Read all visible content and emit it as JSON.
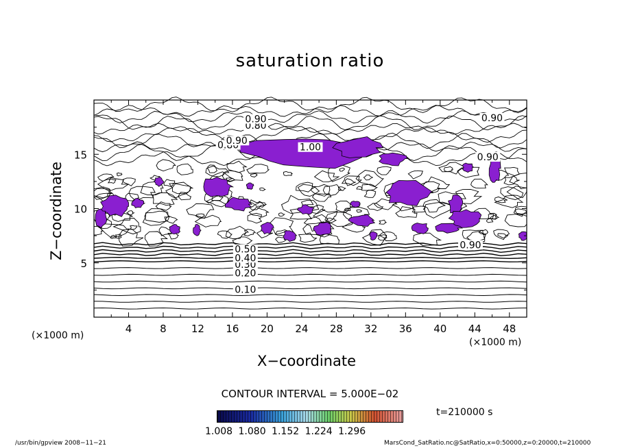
{
  "chart_data": {
    "type": "contour",
    "title": "saturation ratio",
    "xlabel": "X−coordinate",
    "ylabel": "Z−coordinate",
    "x_unit_left": "(×1000 m)",
    "x_unit_right": "(×1000 m)",
    "x_ticks": [
      "4",
      "8",
      "12",
      "16",
      "20",
      "24",
      "28",
      "32",
      "36",
      "40",
      "44",
      "48"
    ],
    "y_ticks": [
      "5",
      "10",
      "15"
    ],
    "xlim": [
      0,
      50
    ],
    "ylim": [
      0,
      20
    ],
    "contour_interval": "CONTOUR INTERVAL = 5.000E−02",
    "contour_labels": [
      {
        "text": "0.10",
        "x": 17.5,
        "z": 2.5
      },
      {
        "text": "0.20",
        "x": 17.5,
        "z": 4.0
      },
      {
        "text": "0.30",
        "x": 17.5,
        "z": 4.8
      },
      {
        "text": "0.40",
        "x": 17.5,
        "z": 5.4
      },
      {
        "text": "0.50",
        "x": 17.5,
        "z": 6.2
      },
      {
        "text": "0.80",
        "x": 18.7,
        "z": 17.6
      },
      {
        "text": "0.90",
        "x": 18.7,
        "z": 18.2
      },
      {
        "text": "0.80",
        "x": 15.5,
        "z": 15.8
      },
      {
        "text": "0.90",
        "x": 16.5,
        "z": 16.2
      },
      {
        "text": "1.00",
        "x": 25.0,
        "z": 15.6
      },
      {
        "text": "0.90",
        "x": 46.0,
        "z": 18.3
      },
      {
        "text": "0.90",
        "x": 45.5,
        "z": 14.7
      },
      {
        "text": "0.90",
        "x": 43.5,
        "z": 6.6
      }
    ],
    "shaded_threshold": 1.008,
    "shade_color": "#8a1fd0",
    "colorbar_ticks": [
      "1.008",
      "1.080",
      "1.152",
      "1.224",
      "1.296"
    ],
    "time": "t=210000 s"
  },
  "footer": {
    "left": "/usr/bin/gpview   2008−11−21",
    "right": "MarsCond_SatRatio.nc@SatRatio,x=0:50000,z=0:20000,t=210000"
  }
}
